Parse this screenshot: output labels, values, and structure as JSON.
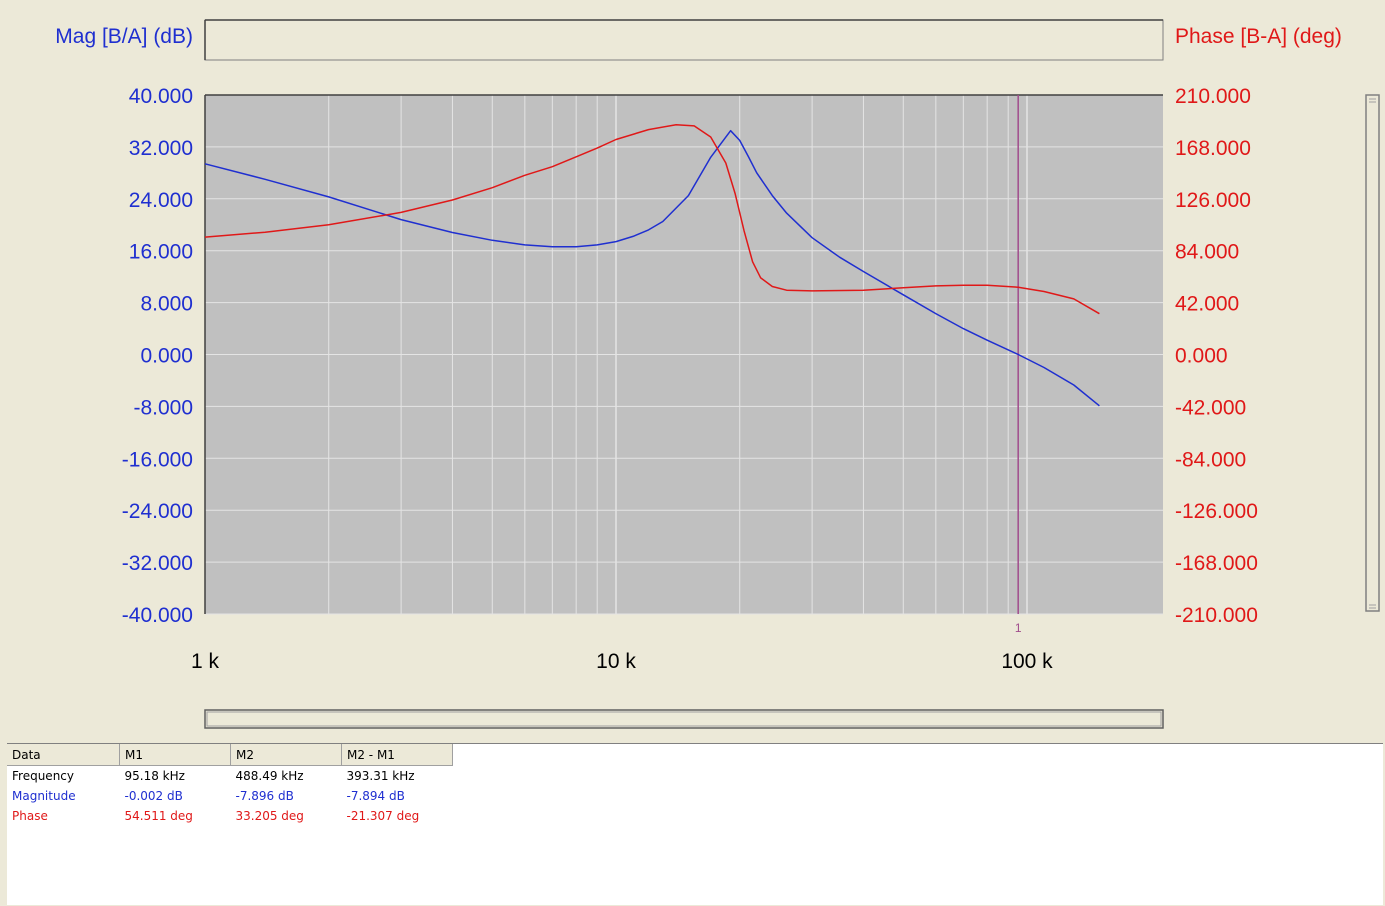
{
  "chart_data": {
    "type": "line",
    "title": "",
    "x_axis": {
      "scale": "log",
      "range": [
        1000,
        150000
      ],
      "tick_values": [
        1000,
        10000,
        100000
      ],
      "tick_labels": [
        "1 k",
        "10 k",
        "100 k"
      ]
    },
    "y_left": {
      "label": "Mag [B/A] (dB)",
      "range": [
        -40,
        40
      ],
      "tick_labels": [
        "40.000",
        "32.000",
        "24.000",
        "16.000",
        "8.000",
        "0.000",
        "-8.000",
        "-16.000",
        "-24.000",
        "-32.000",
        "-40.000"
      ]
    },
    "y_right": {
      "label": "Phase [B-A] (deg)",
      "range": [
        -210,
        210
      ],
      "tick_labels": [
        "210.000",
        "168.000",
        "126.000",
        "84.000",
        "42.000",
        "0.000",
        "-42.000",
        "-84.000",
        "-126.000",
        "-168.000",
        "-210.000"
      ]
    },
    "grid": true,
    "series": [
      {
        "name": "Magnitude",
        "axis": "left",
        "color": "#1f2fd0",
        "x": [
          1000,
          1400,
          2000,
          3000,
          4000,
          5000,
          6000,
          7000,
          8000,
          9000,
          10000,
          11000,
          12000,
          13000,
          15000,
          17000,
          19000,
          20000,
          21000,
          22000,
          24000,
          26000,
          30000,
          35000,
          40000,
          50000,
          60000,
          70000,
          80000,
          95180,
          110000,
          130000,
          150000
        ],
        "y": [
          29.4,
          27.0,
          24.3,
          20.8,
          18.8,
          17.6,
          16.9,
          16.6,
          16.6,
          16.9,
          17.4,
          18.2,
          19.2,
          20.5,
          24.5,
          30.4,
          34.5,
          33.0,
          30.5,
          28.0,
          24.5,
          21.8,
          18.0,
          15.0,
          12.8,
          9.2,
          6.3,
          4.0,
          2.2,
          0.0,
          -2.0,
          -4.7,
          -7.9
        ]
      },
      {
        "name": "Phase",
        "axis": "right",
        "color": "#e01818",
        "x": [
          1000,
          1400,
          2000,
          3000,
          4000,
          5000,
          6000,
          7000,
          8000,
          9000,
          10000,
          12000,
          14000,
          15500,
          17000,
          18500,
          19500,
          20500,
          21500,
          22500,
          24000,
          26000,
          30000,
          40000,
          50000,
          60000,
          70000,
          80000,
          95180,
          110000,
          130000,
          150000
        ],
        "y": [
          95,
          99,
          105,
          115,
          125,
          135,
          145,
          152,
          160,
          167,
          174,
          182,
          186,
          185,
          176,
          155,
          130,
          100,
          75,
          62,
          55,
          52,
          51.5,
          52,
          54,
          55.5,
          56,
          56,
          54.5,
          51,
          45,
          33
        ]
      }
    ],
    "markers": [
      {
        "label": "1",
        "x": 95180
      }
    ]
  },
  "data_table": {
    "headers": [
      "Data",
      "M1",
      "M2",
      "M2 - M1"
    ],
    "rows": [
      {
        "label": "Frequency",
        "m1": "95.18 kHz",
        "m2": "488.49 kHz",
        "diff": "393.31 kHz"
      },
      {
        "label": "Magnitude",
        "m1": "-0.002 dB",
        "m2": "-7.896 dB",
        "diff": "-7.894 dB"
      },
      {
        "label": "Phase",
        "m1": "54.511 deg",
        "m2": "33.205 deg",
        "diff": "-21.307 deg"
      }
    ]
  },
  "colors": {
    "background": "#ece9d8",
    "plot_background": "#c0c0c0",
    "grid": "#e4e4e4",
    "magnitude": "#1f2fd0",
    "phase": "#e01818",
    "marker": "#a04c8c"
  }
}
